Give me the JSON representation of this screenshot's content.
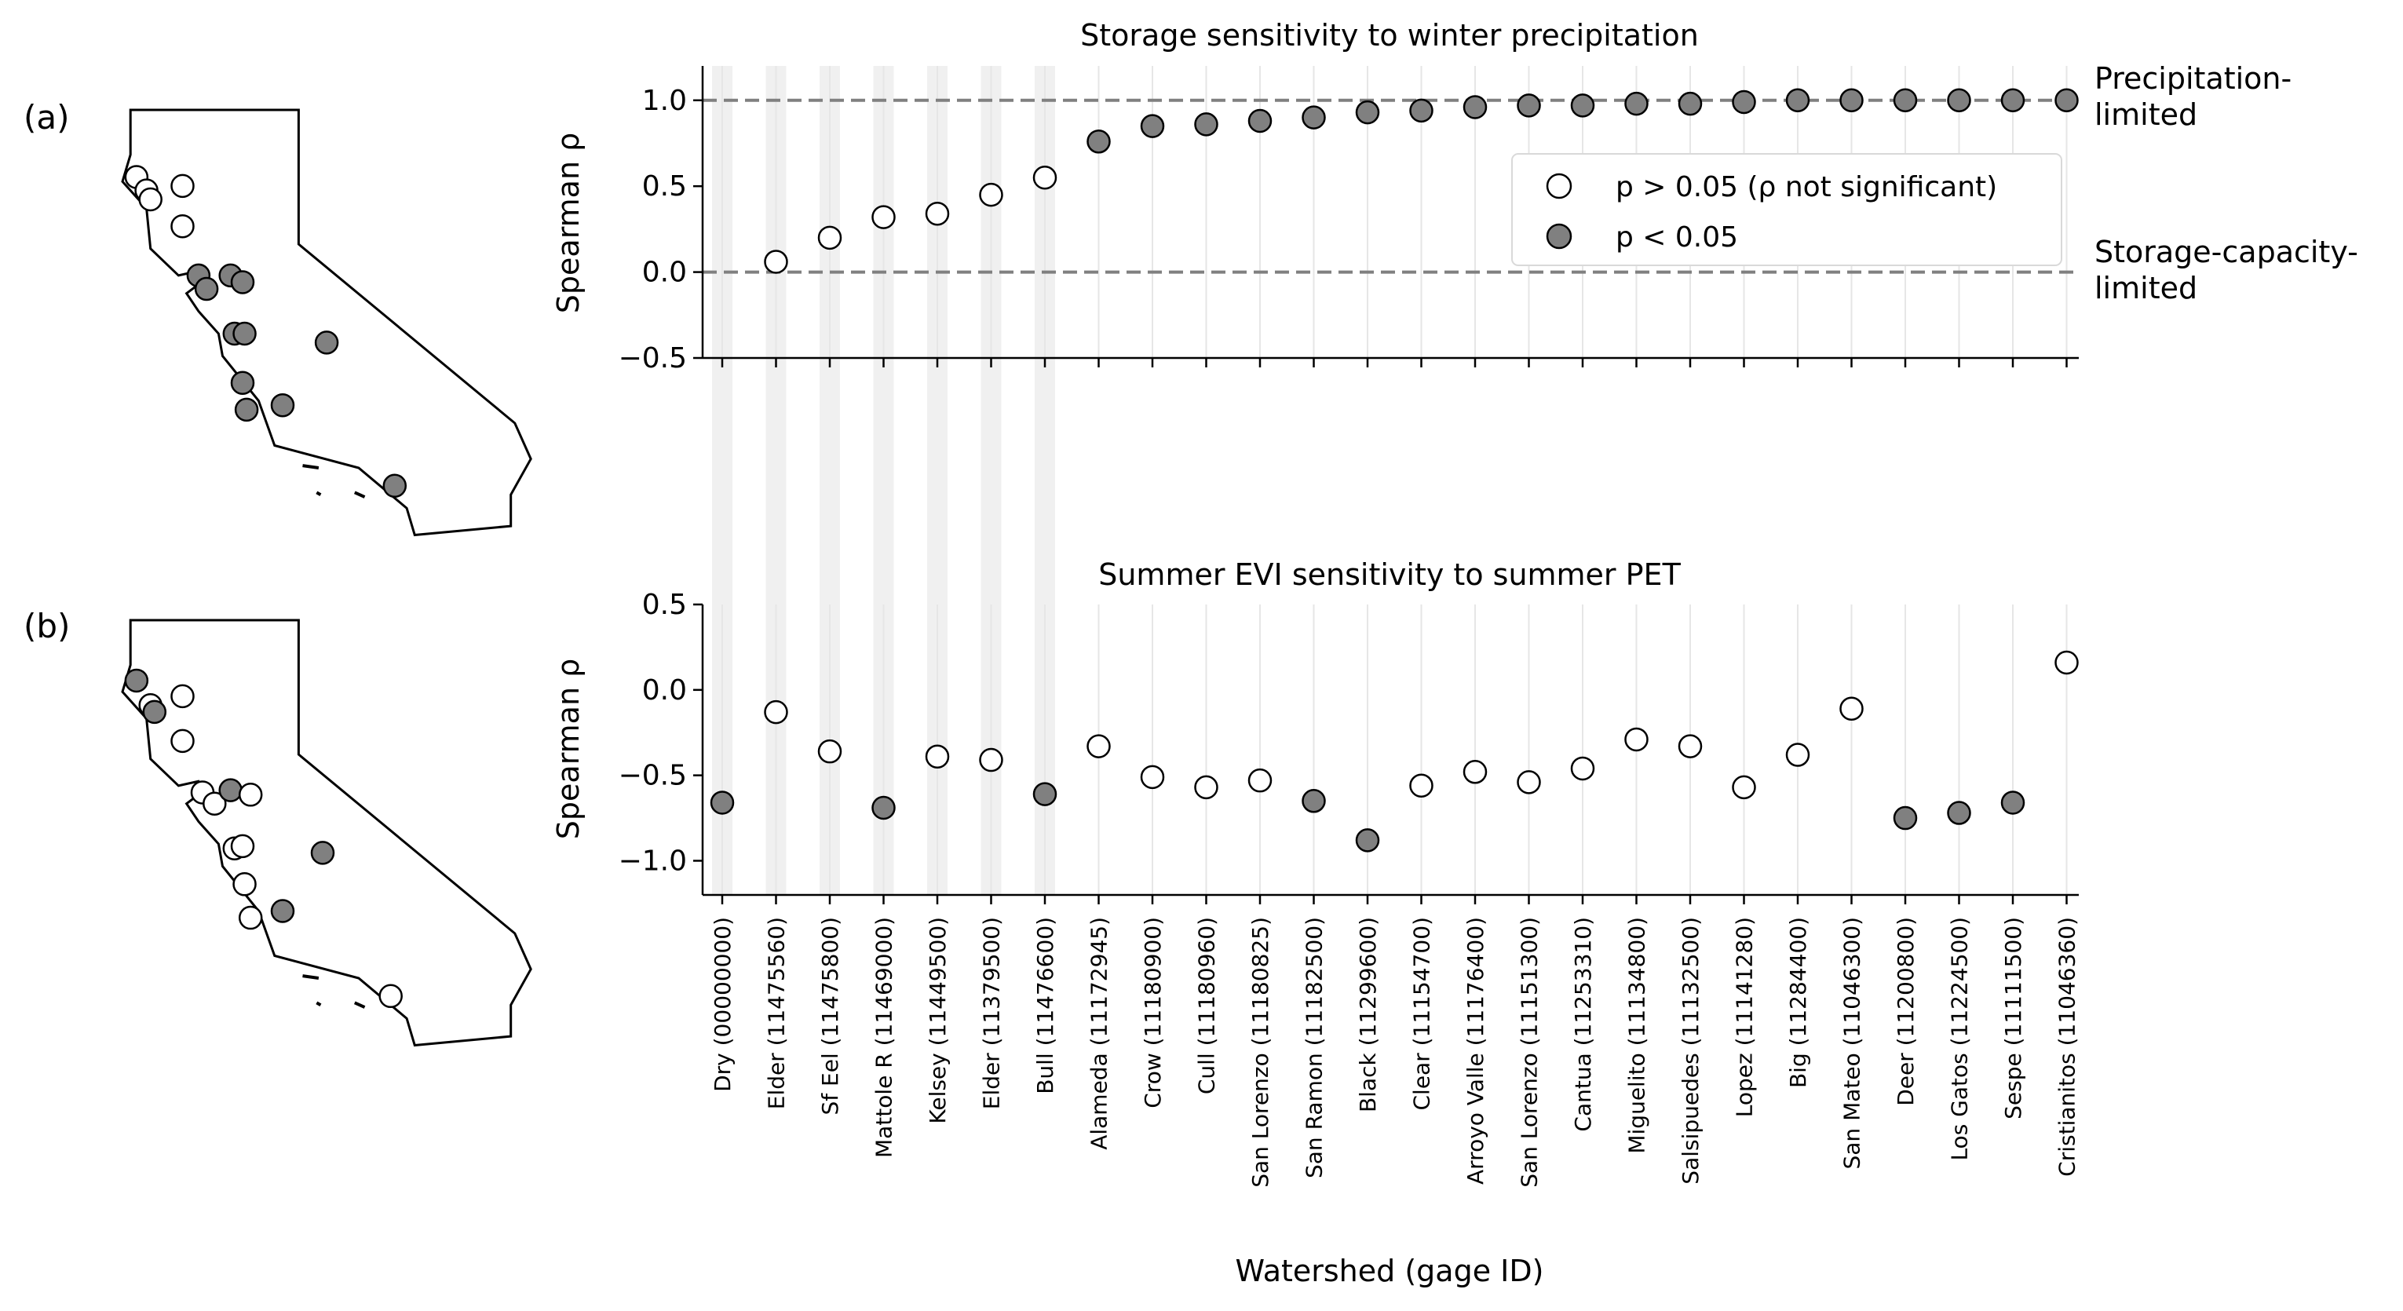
{
  "chart_data": {
    "type": "scatter",
    "categories": [
      "Dry  (00000000)",
      "Elder  (11475560)",
      "Sf Eel  (11475800)",
      "Mattole R  (11469000)",
      "Kelsey  (11449500)",
      "Elder  (11379500)",
      "Bull  (11476600)",
      "Alameda  (11172945)",
      "Crow  (11180900)",
      "Cull  (11180960)",
      "San Lorenzo  (11180825)",
      "San Ramon  (11182500)",
      "Black  (11299600)",
      "Clear  (11154700)",
      "Arroyo Valle  (11176400)",
      "San Lorenzo  (11151300)",
      "Cantua  (11253310)",
      "Miguelito  (11134800)",
      "Salsipuedes  (11132500)",
      "Lopez  (11141280)",
      "Big  (11284400)",
      "San Mateo  (11046300)",
      "Deer  (11200800)",
      "Los Gatos  (11224500)",
      "Sespe  (11111500)",
      "Cristianitos  (11046360)"
    ],
    "highlighted_categories": [
      0,
      1,
      2,
      3,
      4,
      5,
      6
    ],
    "xlabel": "Watershed (gage ID)",
    "panels": [
      {
        "panel_label": "(a)",
        "title": "Storage sensitivity to winter precipitation",
        "ylabel": "Spearman ρ",
        "ylim": [
          -0.5,
          1.2
        ],
        "yticks": [
          -0.5,
          0.0,
          0.5,
          1.0
        ],
        "ytick_labels": [
          "−0.5",
          "0.0",
          "0.5",
          "1.0"
        ],
        "values": [
          null,
          0.06,
          0.2,
          0.32,
          0.34,
          0.45,
          0.55,
          0.76,
          0.85,
          0.86,
          0.88,
          0.9,
          0.93,
          0.94,
          0.96,
          0.97,
          0.97,
          0.98,
          0.98,
          0.99,
          1.0,
          1.0,
          1.0,
          1.0,
          1.0,
          1.0
        ],
        "significant": [
          false,
          false,
          false,
          false,
          false,
          false,
          false,
          true,
          true,
          true,
          true,
          true,
          true,
          true,
          true,
          true,
          true,
          true,
          true,
          true,
          true,
          true,
          true,
          true,
          true,
          true
        ],
        "reference_lines": [
          {
            "y": 1.0,
            "label_line1": "Precipitation-",
            "label_line2": "limited"
          },
          {
            "y": 0.0,
            "label_line1": "Storage-capacity-",
            "label_line2": "limited"
          }
        ],
        "legend": {
          "placement": "upper-right",
          "entries": [
            {
              "marker": "open",
              "text": "p > 0.05 (ρ not significant)"
            },
            {
              "marker": "filled",
              "text": "p < 0.05"
            }
          ]
        }
      },
      {
        "panel_label": "(b)",
        "title": "Summer EVI sensitivity to summer PET",
        "ylabel": "Spearman ρ",
        "ylim": [
          -1.2,
          0.5
        ],
        "yticks": [
          -1.0,
          -0.5,
          0.0,
          0.5
        ],
        "ytick_labels": [
          "−1.0",
          "−0.5",
          "0.0",
          "0.5"
        ],
        "values": [
          -0.66,
          -0.13,
          -0.36,
          -0.69,
          -0.39,
          -0.41,
          -0.61,
          -0.33,
          -0.51,
          -0.57,
          -0.53,
          -0.65,
          -0.88,
          -0.56,
          -0.48,
          -0.54,
          -0.46,
          -0.29,
          -0.33,
          -0.57,
          -0.38,
          -0.11,
          -0.75,
          -0.72,
          -0.66,
          0.16
        ],
        "significant": [
          true,
          false,
          false,
          true,
          false,
          false,
          true,
          false,
          false,
          false,
          false,
          true,
          true,
          false,
          false,
          false,
          false,
          false,
          false,
          false,
          false,
          false,
          true,
          true,
          true,
          false
        ]
      }
    ],
    "maps": [
      {
        "panel": "(a)",
        "stations": [
          {
            "lon": -124.05,
            "lat": 40.5,
            "sig": false
          },
          {
            "lon": -123.8,
            "lat": 40.2,
            "sig": false
          },
          {
            "lon": -123.7,
            "lat": 40.0,
            "sig": false
          },
          {
            "lon": -122.9,
            "lat": 40.3,
            "sig": false
          },
          {
            "lon": -122.9,
            "lat": 39.4,
            "sig": false
          },
          {
            "lon": -122.5,
            "lat": 38.3,
            "sig": true
          },
          {
            "lon": -122.3,
            "lat": 38.0,
            "sig": true
          },
          {
            "lon": -121.7,
            "lat": 38.3,
            "sig": true
          },
          {
            "lon": -121.4,
            "lat": 38.15,
            "sig": true
          },
          {
            "lon": -121.6,
            "lat": 37.0,
            "sig": true
          },
          {
            "lon": -121.35,
            "lat": 37.0,
            "sig": true
          },
          {
            "lon": -121.4,
            "lat": 35.9,
            "sig": true
          },
          {
            "lon": -121.3,
            "lat": 35.3,
            "sig": true
          },
          {
            "lon": -120.4,
            "lat": 35.4,
            "sig": true
          },
          {
            "lon": -119.3,
            "lat": 36.8,
            "sig": true
          },
          {
            "lon": -117.6,
            "lat": 33.6,
            "sig": true
          }
        ]
      },
      {
        "panel": "(b)",
        "stations": [
          {
            "lon": -124.05,
            "lat": 40.65,
            "sig": true
          },
          {
            "lon": -123.7,
            "lat": 40.1,
            "sig": false
          },
          {
            "lon": -123.6,
            "lat": 39.95,
            "sig": true
          },
          {
            "lon": -122.9,
            "lat": 40.3,
            "sig": false
          },
          {
            "lon": -122.9,
            "lat": 39.3,
            "sig": false
          },
          {
            "lon": -122.4,
            "lat": 38.15,
            "sig": false
          },
          {
            "lon": -122.1,
            "lat": 37.9,
            "sig": false
          },
          {
            "lon": -121.7,
            "lat": 38.2,
            "sig": true
          },
          {
            "lon": -121.2,
            "lat": 38.1,
            "sig": false
          },
          {
            "lon": -121.6,
            "lat": 36.9,
            "sig": false
          },
          {
            "lon": -121.4,
            "lat": 36.95,
            "sig": false
          },
          {
            "lon": -121.35,
            "lat": 36.1,
            "sig": false
          },
          {
            "lon": -121.2,
            "lat": 35.35,
            "sig": false
          },
          {
            "lon": -120.4,
            "lat": 35.5,
            "sig": true
          },
          {
            "lon": -119.4,
            "lat": 36.8,
            "sig": true
          },
          {
            "lon": -117.7,
            "lat": 33.6,
            "sig": false
          }
        ]
      }
    ],
    "colors": {
      "filled_marker": "#808080",
      "open_marker": "#ffffff",
      "marker_edge": "#000000",
      "reference_line": "#808080",
      "highlight_band": "#f0f0f0",
      "grid_line": "#e6e6e6"
    }
  }
}
